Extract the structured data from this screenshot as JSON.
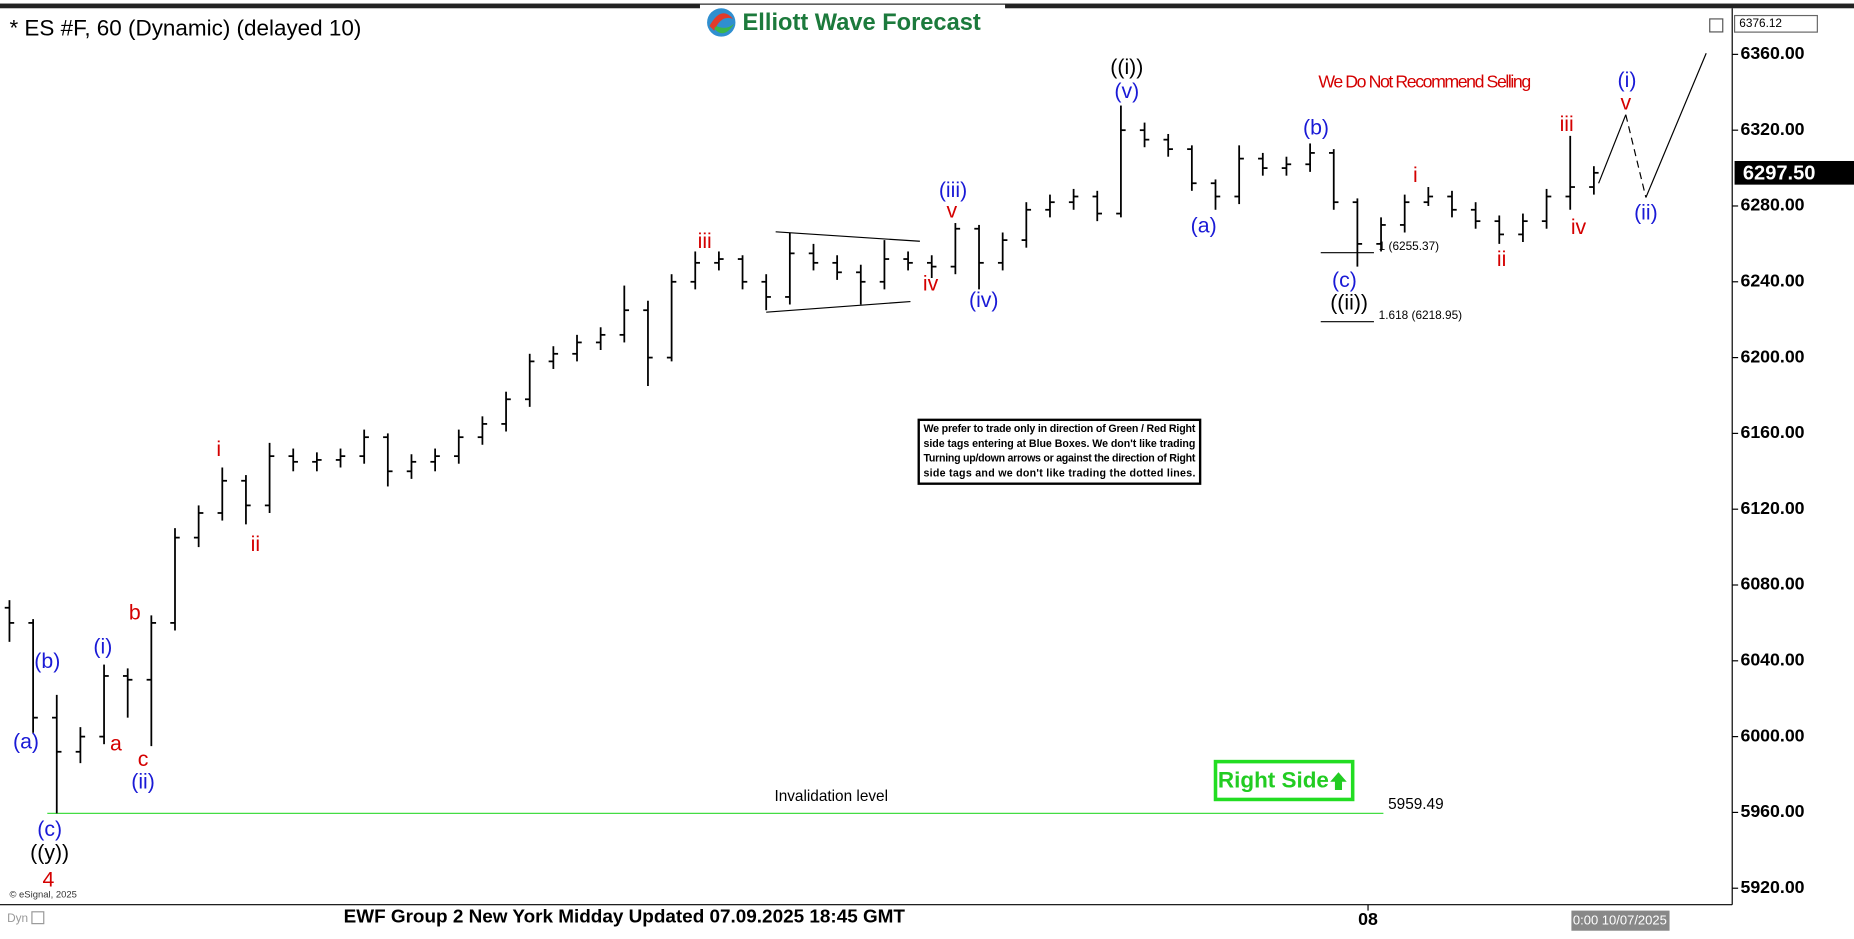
{
  "chart_data": {
    "type": "ohlc",
    "title": "* ES #F, 60 (Dynamic) (delayed 10)",
    "logo": "Elliott Wave Forecast",
    "footer": "EWF Group 2 New York Midday Updated 07.09.2025 18:45 GMT",
    "date_label": "0:00 10/07/2025",
    "copyright": "© eSignal, 2025",
    "mode": "Dyn",
    "warning": "We Do Not Recommend Selling",
    "note": [
      "We prefer to trade only in direction of Green / Red Right",
      "side tags entering at Blue Boxes. We don't like trading",
      "Turning up/down arrows or against the direction of Right",
      "side tags and we don't like trading the dotted lines."
    ],
    "right_side": "Right Side",
    "invalidation": {
      "label": "Invalidation level",
      "value": 5959.49
    },
    "fib_levels": [
      {
        "label": "1 (6255.37)",
        "value": 6255.37
      },
      {
        "label": "1.618 (6218.95)",
        "value": 6218.95
      }
    ],
    "last_price": {
      "value": 6297.5,
      "label": "6297.50"
    },
    "top_price": 6376.12,
    "color": "#000000",
    "categories": [
      null,
      null,
      null,
      null,
      null,
      null,
      null,
      null,
      null,
      null,
      null,
      null,
      null,
      null,
      null,
      null,
      null,
      null,
      null,
      null,
      null,
      null,
      null,
      null,
      null,
      null,
      null,
      null,
      null,
      null,
      null,
      null,
      null,
      null,
      null,
      null,
      null,
      null,
      null,
      null,
      null,
      null,
      null,
      null,
      null,
      null,
      null,
      null,
      null,
      null,
      null,
      null,
      null,
      null,
      null,
      null,
      null,
      "08",
      null,
      null,
      null,
      null,
      null,
      null,
      null,
      null,
      null,
      null
    ],
    "open": [
      6068,
      6060,
      6010,
      5992,
      6000,
      6032,
      6030,
      6060,
      6105,
      6118,
      6135,
      6122,
      6148,
      6145,
      6146,
      6148,
      6158,
      6140,
      6145,
      6148,
      6158,
      6165,
      6178,
      6198,
      6202,
      6208,
      6212,
      6225,
      6200,
      6240,
      6250,
      6252,
      6240,
      6232,
      6255,
      6250,
      6245,
      6240,
      6252,
      6250,
      6248,
      6268,
      6250,
      6262,
      6278,
      6282,
      6285,
      6276,
      6320,
      6315,
      6310,
      6292,
      6285,
      6305,
      6300,
      6302,
      6308,
      6282,
      6260,
      6270,
      6282,
      6285,
      6278,
      6272,
      6265,
      6272,
      6285,
      6290
    ],
    "high": [
      6072,
      6062,
      6022,
      6005,
      6038,
      6036,
      6064,
      6110,
      6122,
      6142,
      6138,
      6155,
      6152,
      6150,
      6152,
      6162,
      6160,
      6149,
      6152,
      6162,
      6169,
      6182,
      6202,
      6206,
      6212,
      6216,
      6238,
      6230,
      6244,
      6256,
      6256,
      6254,
      6244,
      6266,
      6260,
      6254,
      6249,
      6262,
      6256,
      6254,
      6271,
      6270,
      6266,
      6282,
      6286,
      6289,
      6288,
      6333,
      6324,
      6318,
      6312,
      6294,
      6312,
      6308,
      6306,
      6313,
      6310,
      6284,
      6274,
      6286,
      6290,
      6288,
      6282,
      6275,
      6276,
      6289,
      6317,
      6301
    ],
    "low": [
      6050,
      6002,
      5959.49,
      5986,
      5996,
      6010,
      5995,
      6056,
      6100,
      6114,
      6112,
      6118,
      6140,
      6140,
      6142,
      6144,
      6132,
      6136,
      6140,
      6144,
      6154,
      6161,
      6174,
      6194,
      6198,
      6204,
      6208,
      6185,
      6198,
      6236,
      6246,
      6236,
      6225,
      6228,
      6246,
      6241,
      6228,
      6236,
      6246,
      6242,
      6244,
      6236,
      6246,
      6258,
      6274,
      6278,
      6272,
      6274,
      6311,
      6306,
      6288,
      6278,
      6281,
      6296,
      6296,
      6298,
      6278,
      6248,
      6256,
      6266,
      6280,
      6274,
      6268,
      6260,
      6261,
      6268,
      6278,
      6286
    ],
    "close": [
      6060,
      6010,
      5992,
      6000,
      6032,
      6030,
      6060,
      6105,
      6118,
      6135,
      6122,
      6148,
      6145,
      6146,
      6148,
      6158,
      6140,
      6145,
      6148,
      6158,
      6165,
      6178,
      6198,
      6202,
      6208,
      6212,
      6225,
      6200,
      6240,
      6250,
      6252,
      6240,
      6232,
      6255,
      6250,
      6245,
      6240,
      6252,
      6250,
      6248,
      6268,
      6250,
      6262,
      6278,
      6282,
      6285,
      6276,
      6320,
      6315,
      6310,
      6292,
      6285,
      6305,
      6300,
      6302,
      6308,
      6282,
      6260,
      6270,
      6282,
      6285,
      6278,
      6272,
      6265,
      6272,
      6285,
      6290,
      6297.5
    ],
    "ylim": [
      5911.3,
      6383.7
    ],
    "yticks": [
      {
        "value": 5920,
        "label": "5920.00"
      },
      {
        "value": 5960,
        "label": "5960.00"
      },
      {
        "value": 6000,
        "label": "6000.00"
      },
      {
        "value": 6040,
        "label": "6040.00"
      },
      {
        "value": 6080,
        "label": "6080.00"
      },
      {
        "value": 6120,
        "label": "6120.00"
      },
      {
        "value": 6160,
        "label": "6160.00"
      },
      {
        "value": 6200,
        "label": "6200.00"
      },
      {
        "value": 6240,
        "label": "6240.00"
      },
      {
        "value": 6280,
        "label": "6280.00"
      },
      {
        "value": 6320,
        "label": "6320.00"
      },
      {
        "value": 6360,
        "label": "6360.00"
      }
    ],
    "wave_labels": [
      {
        "text": "(a)",
        "color": "#1a1ad6"
      },
      {
        "text": "(b)",
        "color": "#1a1ad6"
      },
      {
        "text": "(c)",
        "color": "#1a1ad6"
      },
      {
        "text": "((y))",
        "color": "#000000"
      },
      {
        "text": "4",
        "color": "#d40000"
      },
      {
        "text": "(i)",
        "color": "#1a1ad6"
      },
      {
        "text": "a",
        "color": "#d40000"
      },
      {
        "text": "b",
        "color": "#d40000"
      },
      {
        "text": "c",
        "color": "#d40000"
      },
      {
        "text": "(ii)",
        "color": "#1a1ad6"
      },
      {
        "text": "i",
        "color": "#d40000"
      },
      {
        "text": "ii",
        "color": "#d40000"
      },
      {
        "text": "iii",
        "color": "#d40000"
      },
      {
        "text": "(iii)",
        "color": "#1a1ad6"
      },
      {
        "text": "v",
        "color": "#d40000"
      },
      {
        "text": "iv",
        "color": "#d40000"
      },
      {
        "text": "(iv)",
        "color": "#1a1ad6"
      },
      {
        "text": "((i))",
        "color": "#000000"
      },
      {
        "text": "(v)",
        "color": "#1a1ad6"
      },
      {
        "text": "(a)",
        "color": "#1a1ad6"
      },
      {
        "text": "(b)",
        "color": "#1a1ad6"
      },
      {
        "text": "(c)",
        "color": "#1a1ad6"
      },
      {
        "text": "((ii))",
        "color": "#000000"
      },
      {
        "text": "i",
        "color": "#d40000"
      },
      {
        "text": "ii",
        "color": "#d40000"
      },
      {
        "text": "iii",
        "color": "#d40000"
      },
      {
        "text": "iv",
        "color": "#d40000"
      },
      {
        "text": "v",
        "color": "#d40000"
      },
      {
        "text": "(i)",
        "color": "#1a1ad6"
      },
      {
        "text": "(ii)",
        "color": "#1a1ad6"
      }
    ]
  }
}
